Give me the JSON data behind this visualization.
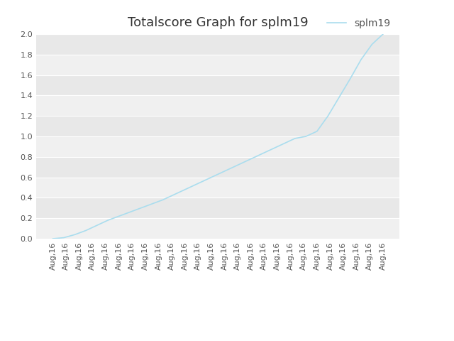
{
  "title": "Totalscore Graph for splm19",
  "legend_label": "splm19",
  "line_color": "#aaddee",
  "figure_bg_color": "#ffffff",
  "axes_bg_color": "#e8e8e8",
  "alt_band_color": "#f0f0f0",
  "ylim": [
    0.0,
    2.0
  ],
  "yticks": [
    0.0,
    0.2,
    0.4,
    0.6,
    0.8,
    1.0,
    1.2,
    1.4,
    1.6,
    1.8,
    2.0
  ],
  "num_xticks": 26,
  "x_label_text": "Aug,16",
  "y_values": [
    0.0,
    0.01,
    0.04,
    0.08,
    0.13,
    0.18,
    0.22,
    0.26,
    0.3,
    0.34,
    0.38,
    0.43,
    0.48,
    0.53,
    0.58,
    0.63,
    0.68,
    0.73,
    0.78,
    0.83,
    0.88,
    0.93,
    0.98,
    1.0,
    1.05,
    1.2,
    1.38,
    1.56,
    1.75,
    1.9,
    2.0
  ],
  "title_fontsize": 13,
  "tick_fontsize": 8,
  "legend_fontsize": 10,
  "grid_color": "#ffffff",
  "tick_color": "#555555",
  "line_width": 1.2
}
